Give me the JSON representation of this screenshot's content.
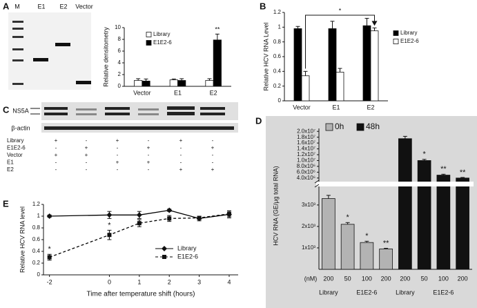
{
  "panel_labels": [
    "A",
    "B",
    "C",
    "D",
    "E"
  ],
  "gel": {
    "lanes": [
      "M",
      "E1",
      "E2",
      "Vector"
    ]
  },
  "blot": {
    "bands": [
      "NS5A",
      "β-actin"
    ],
    "rows": [
      {
        "label": "Library",
        "marks": [
          "+",
          "-",
          "+",
          "-",
          "+",
          "-"
        ]
      },
      {
        "label": "E1E2-6",
        "marks": [
          "-",
          "+",
          "-",
          "+",
          "-",
          "+"
        ]
      },
      {
        "label": "Vector",
        "marks": [
          "+",
          "+",
          "-",
          "-",
          "-",
          "-"
        ]
      },
      {
        "label": "E1",
        "marks": [
          "-",
          "-",
          "+",
          "+",
          "-",
          "-"
        ]
      },
      {
        "label": "E2",
        "marks": [
          "-",
          "-",
          "-",
          "-",
          "+",
          "+"
        ]
      }
    ]
  },
  "chart_data": [
    {
      "type": "bar",
      "ylabel": "Relative densitometry",
      "legend": "upper left",
      "categories": [
        "Vector",
        "E1",
        "E2"
      ],
      "series": [
        {
          "name": "Library",
          "color": "#ffffff",
          "values": [
            1,
            1.1,
            1
          ],
          "errors": [
            0.3,
            0.15,
            0.3
          ],
          "significance": [
            null,
            null,
            null
          ]
        },
        {
          "name": "E1E2-6",
          "color": "#000000",
          "values": [
            0.9,
            1.0,
            7.9
          ],
          "errors": [
            0.35,
            0.3,
            1.0
          ],
          "significance": [
            null,
            null,
            "**"
          ]
        }
      ],
      "ylim": [
        0,
        10
      ],
      "yticks": [
        0,
        2,
        4,
        6,
        8,
        10
      ]
    },
    {
      "type": "bar",
      "ylabel": "Relative HCV RNA Level",
      "legend": "right",
      "bracket_label": "*",
      "categories": [
        "Vector",
        "E1",
        "E2"
      ],
      "series": [
        {
          "name": "Library",
          "color": "#000000",
          "values": [
            0.98,
            0.98,
            1.02
          ],
          "errors": [
            0.03,
            0.1,
            0.1
          ]
        },
        {
          "name": "E1E2-6",
          "color": "#ffffff",
          "values": [
            0.34,
            0.39,
            0.95
          ],
          "errors": [
            0.06,
            0.05,
            0.04
          ]
        }
      ],
      "ylim": [
        0,
        1.2
      ],
      "yticks": [
        0,
        0.2,
        0.4,
        0.6,
        0.8,
        1,
        1.2
      ]
    },
    {
      "type": "broken_bar",
      "ylabel": "HCV RNA (GE/μg total RNA)",
      "legend": "top",
      "x_unit_label": "(nM)",
      "group_labels": [
        "Library",
        "E1E2-6"
      ],
      "categories": [
        "200",
        "50",
        "100",
        "200",
        "200",
        "50",
        "100",
        "200"
      ],
      "series": [
        {
          "name": "0h",
          "color": "#b3b3b3",
          "values": [
            3300,
            2100,
            1250,
            950,
            null,
            null,
            null,
            null
          ],
          "errors": [
            150,
            80,
            60,
            30,
            null,
            null,
            null,
            null
          ],
          "significance": [
            null,
            "*",
            "*",
            "**",
            null,
            null,
            null,
            null
          ]
        },
        {
          "name": "48h",
          "color": "#111111",
          "axis": "y2",
          "values": [
            null,
            null,
            null,
            null,
            17500000,
            10000000,
            5000000,
            4000000
          ],
          "errors": [
            null,
            null,
            null,
            null,
            800000,
            400000,
            300000,
            200000
          ],
          "significance": [
            null,
            null,
            null,
            null,
            null,
            "*",
            "**",
            "**"
          ]
        }
      ],
      "ylim": [
        0,
        3800
      ],
      "yticks": [
        {
          "value": 1000,
          "label": "1x10³"
        },
        {
          "value": 2000,
          "label": "2x10³"
        },
        {
          "value": 3000,
          "label": "3x10³"
        }
      ],
      "y2lim": [
        3000000,
        21000000
      ],
      "y2ticks": [
        {
          "value": 20000000,
          "label": "2.0x10⁷"
        },
        {
          "value": 18000000,
          "label": "1.8x10⁷"
        },
        {
          "value": 16000000,
          "label": "1.6x10⁷"
        },
        {
          "value": 14000000,
          "label": "1.4x10⁷"
        },
        {
          "value": 12000000,
          "label": "1.2x10⁷"
        },
        {
          "value": 10000000,
          "label": "1.0x10⁷"
        },
        {
          "value": 8000000,
          "label": "8.0x10⁶"
        },
        {
          "value": 6000000,
          "label": "6.0x10⁶"
        },
        {
          "value": 4000000,
          "label": "4.0x10⁶"
        }
      ]
    },
    {
      "type": "line",
      "xlabel": "Time after temperature shift (hours)",
      "ylabel": "Relative HCV RNA level",
      "legend": "lower right",
      "x": [
        -2,
        0,
        1,
        2,
        3,
        4
      ],
      "series": [
        {
          "name": "Library",
          "color": "#000000",
          "values": [
            1,
            1.02,
            1.02,
            1.1,
            0.96,
            1.03
          ],
          "errors": [
            0.02,
            0.06,
            0.06,
            0.02,
            0.04,
            0.06
          ],
          "significance": [
            null,
            null,
            null,
            null,
            null,
            null
          ]
        },
        {
          "name": "E1E2-6",
          "color": "#000000",
          "values": [
            0.3,
            0.68,
            0.88,
            0.96,
            0.97,
            1.04
          ],
          "errors": [
            0.05,
            0.08,
            0.06,
            0.05,
            0.03,
            0.05
          ],
          "significance": [
            "*",
            "*",
            null,
            null,
            null,
            null
          ]
        }
      ],
      "xlim": [
        -2.2,
        4.3
      ],
      "xticks": [
        -2,
        0,
        1,
        2,
        3,
        4
      ],
      "ylim": [
        0,
        1.2
      ],
      "yticks": [
        0,
        0.2,
        0.4,
        0.6,
        0.8,
        1,
        1.2
      ]
    }
  ]
}
